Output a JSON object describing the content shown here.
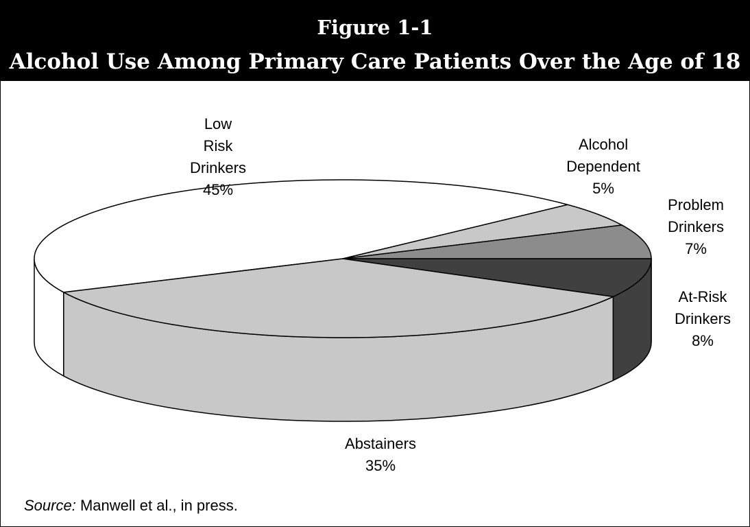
{
  "chart_data": {
    "type": "pie3d",
    "title": "Figure 1-1",
    "subtitle": "Alcohol Use Among Primary Care Patients Over the Age of 18",
    "categories": [
      "Low Risk Drinkers",
      "Alcohol Dependent",
      "Problem Drinkers",
      "At-Risk Drinkers",
      "Abstainers"
    ],
    "values": [
      45,
      5,
      7,
      8,
      35
    ],
    "value_labels": [
      "45%",
      "5%",
      "7%",
      "8%",
      "35%"
    ],
    "colors": [
      "#ffffff",
      "#c8c8c8",
      "#8c8c8c",
      "#404040",
      "#c8c8c8"
    ],
    "source": {
      "label": "Source:",
      "text": "Manwell et al., in press."
    }
  }
}
